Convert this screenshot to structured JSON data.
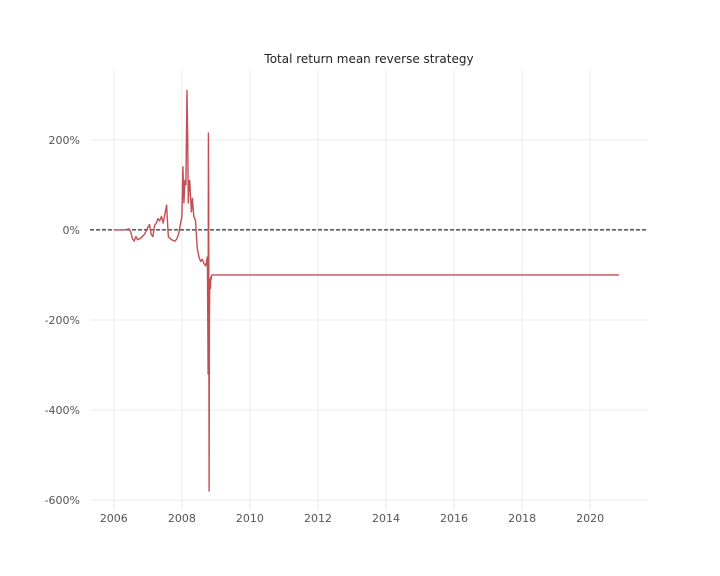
{
  "chart_data": {
    "type": "line",
    "title": "Total return mean reverse strategy",
    "xlabel": "",
    "ylabel": "",
    "xlim": [
      2005.3,
      2021.7
    ],
    "ylim": [
      -622,
      355
    ],
    "grid": true,
    "legend": "none",
    "zero_line": {
      "y": 0,
      "style": "dashed",
      "color": "#000000"
    },
    "x_ticks": [
      2006,
      2008,
      2010,
      2012,
      2014,
      2016,
      2018,
      2020
    ],
    "x_tick_labels": [
      "2006",
      "2008",
      "2010",
      "2012",
      "2014",
      "2016",
      "2018",
      "2020"
    ],
    "y_ticks": [
      200,
      0,
      -200,
      -400,
      -600
    ],
    "y_tick_labels": [
      "200%",
      "0%",
      "-200%",
      "-400%",
      "-600%"
    ],
    "series": [
      {
        "color": "#c44e52",
        "x": [
          2006.0,
          2006.3,
          2006.45,
          2006.5,
          2006.55,
          2006.6,
          2006.65,
          2006.7,
          2006.8,
          2006.9,
          2007.0,
          2007.05,
          2007.1,
          2007.15,
          2007.2,
          2007.25,
          2007.3,
          2007.35,
          2007.4,
          2007.45,
          2007.5,
          2007.55,
          2007.6,
          2007.7,
          2007.8,
          2007.85,
          2007.9,
          2007.95,
          2008.0,
          2008.03,
          2008.06,
          2008.09,
          2008.12,
          2008.15,
          2008.17,
          2008.19,
          2008.21,
          2008.23,
          2008.25,
          2008.28,
          2008.31,
          2008.35,
          2008.4,
          2008.45,
          2008.5,
          2008.55,
          2008.6,
          2008.65,
          2008.7,
          2008.75,
          2008.77,
          2008.78,
          2008.79,
          2008.8,
          2008.81,
          2008.82,
          2008.83,
          2008.84,
          2008.85,
          2008.86,
          2008.87,
          2008.89,
          2008.92,
          2008.96,
          2009.0,
          2009.5,
          2010.0,
          2012.0,
          2014.0,
          2016.0,
          2018.0,
          2020.0,
          2020.85
        ],
        "y": [
          0,
          0,
          2,
          -5,
          -20,
          -25,
          -15,
          -22,
          -18,
          -10,
          5,
          12,
          -10,
          -15,
          10,
          15,
          25,
          20,
          30,
          15,
          35,
          55,
          -15,
          -22,
          -25,
          -20,
          -10,
          10,
          30,
          140,
          60,
          110,
          100,
          310,
          200,
          60,
          100,
          110,
          80,
          40,
          70,
          30,
          20,
          -40,
          -60,
          -70,
          -65,
          -75,
          -80,
          -60,
          -320,
          215,
          80,
          -580,
          -200,
          -110,
          -120,
          -130,
          -105,
          -110,
          -102,
          -100,
          -100,
          -100,
          -100,
          -100,
          -100,
          -100,
          -100,
          -100,
          -100,
          -100,
          -100
        ]
      }
    ]
  }
}
